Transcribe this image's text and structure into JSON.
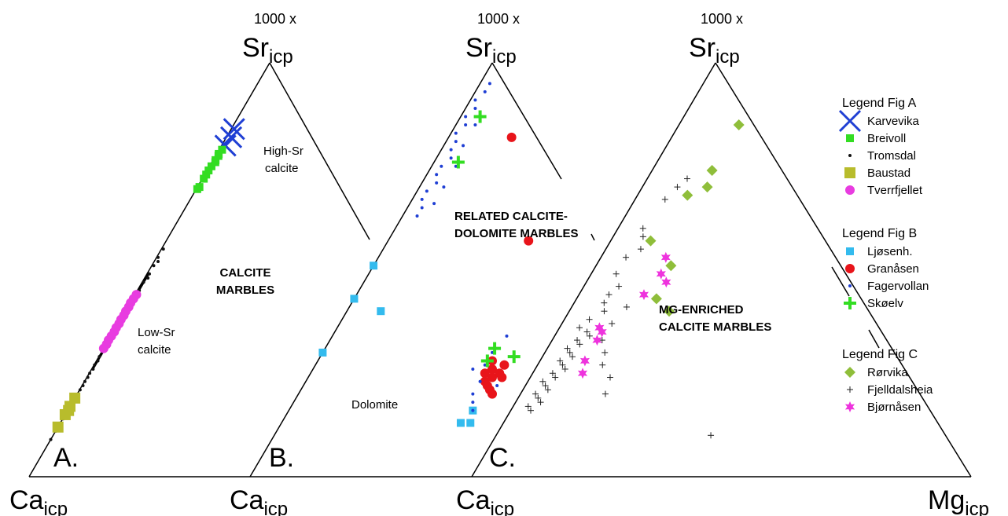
{
  "chart_data": [
    {
      "type": "scatter",
      "panel": "A.",
      "apex_top": {
        "top": "1000 x",
        "base": "Sr",
        "sub": "icp"
      },
      "apex_left": {
        "base": "Ca",
        "sub": "icp"
      },
      "region_labels": [
        {
          "lines": [
            "High-Sr",
            "calcite"
          ],
          "style": "normal"
        },
        {
          "lines": [
            "CALCITE",
            "MARBLES"
          ],
          "style": "bold"
        },
        {
          "lines": [
            "Low-Sr",
            "calcite"
          ],
          "style": "normal"
        }
      ],
      "series": [
        {
          "name": "Karvevika",
          "marker": "x",
          "color": "#1f3fd4",
          "points": [
            [
              0.84,
              0.006
            ],
            [
              0.8,
              0.008
            ],
            [
              0.82,
              0.01
            ]
          ]
        },
        {
          "name": "Breivoll",
          "marker": "square",
          "color": "#33dd22",
          "points": [
            [
              0.78,
              0.004
            ],
            [
              0.765,
              0.005
            ],
            [
              0.75,
              0.004
            ],
            [
              0.74,
              0.003
            ],
            [
              0.73,
              0.003
            ],
            [
              0.72,
              0.003
            ],
            [
              0.7,
              0.004
            ],
            [
              0.695,
              0.002
            ],
            [
              0.79,
              0.006
            ],
            [
              0.775,
              0.006
            ],
            [
              0.76,
              0.007
            ]
          ]
        },
        {
          "name": "Tromsdal",
          "marker": "dot",
          "color": "#111111",
          "points": [
            [
              0.55,
              0.004
            ],
            [
              0.53,
              0.003
            ],
            [
              0.51,
              0.004
            ],
            [
              0.49,
              0.005
            ],
            [
              0.47,
              0.003
            ],
            [
              0.45,
              0.004
            ],
            [
              0.43,
              0.003
            ],
            [
              0.41,
              0.002
            ],
            [
              0.39,
              0.003
            ],
            [
              0.37,
              0.002
            ],
            [
              0.35,
              0.002
            ],
            [
              0.33,
              0.001
            ],
            [
              0.31,
              0.002
            ],
            [
              0.29,
              0.001
            ],
            [
              0.27,
              0.001
            ],
            [
              0.25,
              0.001
            ],
            [
              0.23,
              0.001
            ],
            [
              0.21,
              0.001
            ],
            [
              0.19,
              0.001
            ],
            [
              0.17,
              0.0
            ],
            [
              0.15,
              0.0
            ],
            [
              0.13,
              0.001
            ],
            [
              0.11,
              0.0
            ],
            [
              0.09,
              0.0
            ],
            [
              0.52,
              0.008
            ],
            [
              0.48,
              0.007
            ],
            [
              0.44,
              0.006
            ],
            [
              0.4,
              0.005
            ],
            [
              0.36,
              0.004
            ],
            [
              0.34,
              0.005
            ],
            [
              0.32,
              0.004
            ],
            [
              0.28,
              0.003
            ],
            [
              0.26,
              0.003
            ],
            [
              0.24,
              0.002
            ],
            [
              0.22,
              0.002
            ],
            [
              0.2,
              0.002
            ],
            [
              0.18,
              0.001
            ],
            [
              0.16,
              0.002
            ],
            [
              0.14,
              0.001
            ]
          ]
        },
        {
          "name": "Baustad",
          "marker": "bigsquare",
          "color": "#b8bc2c",
          "points": [
            [
              0.19,
              0.0
            ],
            [
              0.17,
              0.0
            ],
            [
              0.15,
              0.0
            ],
            [
              0.12,
              0.0
            ],
            [
              0.16,
              0.002
            ]
          ]
        },
        {
          "name": "Tverrfjellet",
          "marker": "circle",
          "color": "#e83ce0",
          "points": [
            [
              0.44,
              0.003
            ],
            [
              0.43,
              0.002
            ],
            [
              0.42,
              0.001
            ],
            [
              0.41,
              0.002
            ],
            [
              0.4,
              0.001
            ],
            [
              0.39,
              0.002
            ],
            [
              0.38,
              0.001
            ],
            [
              0.37,
              0.002
            ],
            [
              0.36,
              0.001
            ],
            [
              0.35,
              0.002
            ],
            [
              0.34,
              0.001
            ],
            [
              0.33,
              0.0
            ],
            [
              0.32,
              0.001
            ],
            [
              0.31,
              0.0
            ]
          ]
        }
      ]
    },
    {
      "type": "scatter",
      "panel": "B.",
      "apex_top": {
        "top": "1000 x",
        "base": "Sr",
        "sub": "icp"
      },
      "apex_left": {
        "base": "Ca",
        "sub": "icp"
      },
      "region_labels": [
        {
          "lines": [
            "RELATED CALCITE-",
            "DOLOMITE MARBLES"
          ],
          "style": "bold"
        },
        {
          "lines": [
            "Dolomite"
          ],
          "style": "normal"
        }
      ],
      "series": [
        {
          "name": "Ljøsenh.",
          "marker": "square",
          "color": "#33bbee",
          "points": [
            [
              0.3,
              0.0
            ],
            [
              0.43,
              0.0
            ],
            [
              0.51,
              0.0
            ],
            [
              0.4,
              0.07
            ],
            [
              0.16,
              0.38
            ],
            [
              0.13,
              0.39
            ],
            [
              0.13,
              0.37
            ]
          ]
        },
        {
          "name": "Granåsen",
          "marker": "circle",
          "color": "#e8141a",
          "points": [
            [
              0.82,
              0.13
            ],
            [
              0.57,
              0.29
            ],
            [
              0.28,
              0.36
            ],
            [
              0.26,
              0.37
            ],
            [
              0.25,
              0.36
            ],
            [
              0.24,
              0.38
            ],
            [
              0.23,
              0.37
            ],
            [
              0.22,
              0.38
            ],
            [
              0.21,
              0.39
            ],
            [
              0.27,
              0.39
            ],
            [
              0.25,
              0.39
            ],
            [
              0.24,
              0.4
            ],
            [
              0.2,
              0.4
            ]
          ]
        },
        {
          "name": "Fagervollan",
          "marker": "dot",
          "color": "#1f3fd4",
          "points": [
            [
              0.95,
              0.02
            ],
            [
              0.93,
              0.02
            ],
            [
              0.91,
              0.01
            ],
            [
              0.89,
              0.02
            ],
            [
              0.87,
              0.01
            ],
            [
              0.85,
              0.02
            ],
            [
              0.83,
              0.01
            ],
            [
              0.81,
              0.02
            ],
            [
              0.79,
              0.02
            ],
            [
              0.77,
              0.03
            ],
            [
              0.75,
              0.02
            ],
            [
              0.73,
              0.02
            ],
            [
              0.71,
              0.03
            ],
            [
              0.69,
              0.02
            ],
            [
              0.67,
              0.02
            ],
            [
              0.65,
              0.03
            ],
            [
              0.63,
              0.03
            ],
            [
              0.85,
              0.04
            ],
            [
              0.8,
              0.04
            ],
            [
              0.75,
              0.05
            ],
            [
              0.7,
              0.05
            ],
            [
              0.66,
              0.05
            ],
            [
              0.34,
              0.36
            ],
            [
              0.3,
              0.35
            ],
            [
              0.27,
              0.35
            ],
            [
              0.23,
              0.36
            ],
            [
              0.2,
              0.36
            ],
            [
              0.18,
              0.37
            ],
            [
              0.16,
              0.38
            ],
            [
              0.22,
              0.4
            ],
            [
              0.26,
              0.33
            ]
          ]
        },
        {
          "name": "Skøelv",
          "marker": "plus",
          "color": "#33dd22",
          "points": [
            [
              0.87,
              0.04
            ],
            [
              0.76,
              0.05
            ],
            [
              0.29,
              0.4
            ],
            [
              0.28,
              0.35
            ],
            [
              0.31,
              0.35
            ]
          ]
        }
      ]
    },
    {
      "type": "scatter",
      "panel": "C.",
      "apex_top": {
        "top": "1000 x",
        "base": "Sr",
        "sub": "icp"
      },
      "apex_left": {
        "base": "Ca",
        "sub": "icp"
      },
      "apex_right": {
        "base": "Mg",
        "sub": "icp"
      },
      "region_labels": [
        {
          "lines": [
            "MG-ENRICHED",
            "CALCITE MARBLES"
          ],
          "style": "bold"
        }
      ],
      "series": [
        {
          "name": "Rørvika",
          "marker": "diamond",
          "color": "#8fbe3a",
          "points": [
            [
              0.85,
              0.12
            ],
            [
              0.74,
              0.12
            ],
            [
              0.7,
              0.13
            ],
            [
              0.68,
              0.1
            ],
            [
              0.57,
              0.08
            ],
            [
              0.51,
              0.15
            ],
            [
              0.43,
              0.16
            ],
            [
              0.4,
              0.2
            ]
          ]
        },
        {
          "name": "Fjelldalsheia",
          "marker": "plus",
          "color": "#222222",
          "points": [
            [
              0.72,
              0.08
            ],
            [
              0.7,
              0.07
            ],
            [
              0.67,
              0.06
            ],
            [
              0.6,
              0.05
            ],
            [
              0.58,
              0.06
            ],
            [
              0.55,
              0.07
            ],
            [
              0.53,
              0.05
            ],
            [
              0.49,
              0.05
            ],
            [
              0.46,
              0.07
            ],
            [
              0.44,
              0.06
            ],
            [
              0.42,
              0.06
            ],
            [
              0.4,
              0.07
            ],
            [
              0.38,
              0.05
            ],
            [
              0.36,
              0.04
            ],
            [
              0.35,
              0.06
            ],
            [
              0.34,
              0.07
            ],
            [
              0.33,
              0.05
            ],
            [
              0.32,
              0.06
            ],
            [
              0.31,
              0.04
            ],
            [
              0.3,
              0.05
            ],
            [
              0.29,
              0.06
            ],
            [
              0.28,
              0.04
            ],
            [
              0.27,
              0.05
            ],
            [
              0.26,
              0.06
            ],
            [
              0.25,
              0.04
            ],
            [
              0.24,
              0.05
            ],
            [
              0.23,
              0.03
            ],
            [
              0.22,
              0.04
            ],
            [
              0.21,
              0.05
            ],
            [
              0.2,
              0.03
            ],
            [
              0.19,
              0.04
            ],
            [
              0.18,
              0.05
            ],
            [
              0.17,
              0.03
            ],
            [
              0.16,
              0.04
            ],
            [
              0.3,
              0.12
            ],
            [
              0.27,
              0.13
            ],
            [
              0.24,
              0.16
            ],
            [
              0.2,
              0.17
            ],
            [
              0.1,
              0.43
            ],
            [
              0.37,
              0.1
            ],
            [
              0.41,
              0.11
            ],
            [
              0.33,
              0.1
            ]
          ]
        },
        {
          "name": "Bjørnåsen",
          "marker": "star",
          "color": "#ee33dd",
          "points": [
            [
              0.53,
              0.13
            ],
            [
              0.49,
              0.14
            ],
            [
              0.47,
              0.16
            ],
            [
              0.44,
              0.13
            ],
            [
              0.36,
              0.08
            ],
            [
              0.35,
              0.09
            ],
            [
              0.33,
              0.09
            ],
            [
              0.28,
              0.09
            ],
            [
              0.25,
              0.1
            ]
          ]
        }
      ]
    }
  ],
  "legends": [
    {
      "title": "Legend Fig A",
      "entries": [
        {
          "label": "Karvevika",
          "marker": "x",
          "color": "#1f3fd4"
        },
        {
          "label": "Breivoll",
          "marker": "square",
          "color": "#33dd22"
        },
        {
          "label": "Tromsdal",
          "marker": "dot",
          "color": "#111111"
        },
        {
          "label": "Baustad",
          "marker": "bigsquare",
          "color": "#b8bc2c"
        },
        {
          "label": "Tverrfjellet",
          "marker": "circle",
          "color": "#e83ce0"
        }
      ]
    },
    {
      "title": "Legend Fig B",
      "entries": [
        {
          "label": "Ljøsenh.",
          "marker": "square",
          "color": "#33bbee"
        },
        {
          "label": "Granåsen",
          "marker": "circle",
          "color": "#e8141a"
        },
        {
          "label": "Fagervollan",
          "marker": "dot",
          "color": "#1f3fd4"
        },
        {
          "label": "Skøelv",
          "marker": "plus",
          "color": "#33dd22"
        }
      ]
    },
    {
      "title": "Legend Fig C",
      "entries": [
        {
          "label": "Rørvika",
          "marker": "diamond",
          "color": "#8fbe3a"
        },
        {
          "label": "Fjelldalsheia",
          "marker": "plus",
          "color": "#222222"
        },
        {
          "label": "Bjørnåsen",
          "marker": "star",
          "color": "#ee33dd"
        }
      ]
    }
  ]
}
